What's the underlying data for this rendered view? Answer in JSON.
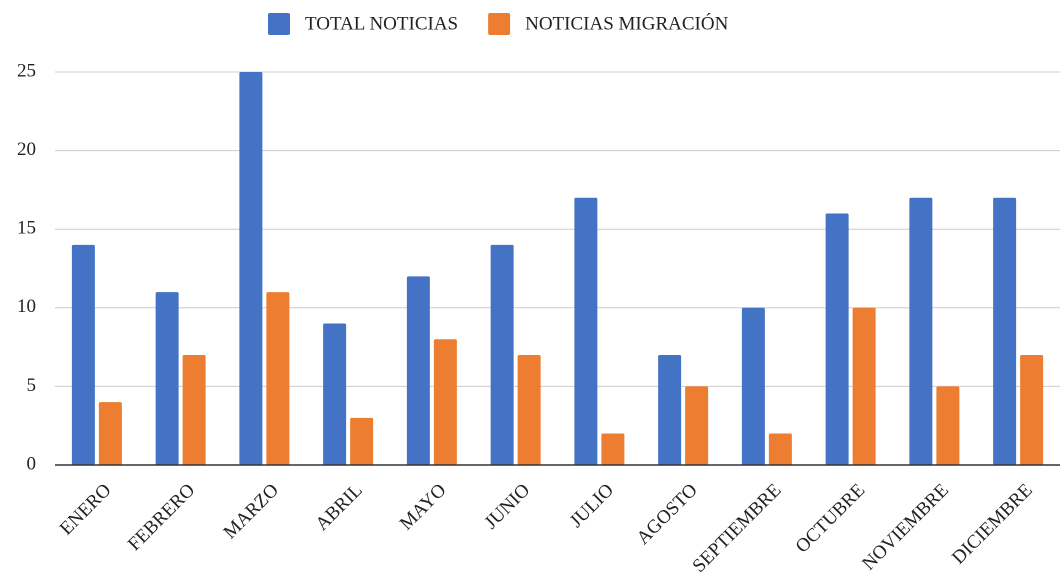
{
  "chart_data": {
    "type": "bar",
    "categories": [
      "ENERO",
      "FEBRERO",
      "MARZO",
      "ABRIL",
      "MAYO",
      "JUNIO",
      "JULIO",
      "AGOSTO",
      "SEPTIEMBRE",
      "OCTUBRE",
      "NOVIEMBRE",
      "DICIEMBRE"
    ],
    "series": [
      {
        "name": "TOTAL NOTICIAS",
        "color": "#4472c4",
        "values": [
          14,
          11,
          25,
          9,
          12,
          14,
          17,
          7,
          10,
          16,
          17,
          17
        ]
      },
      {
        "name": "NOTICIAS MIGRACIÓN",
        "color": "#ed7d31",
        "values": [
          4,
          7,
          11,
          3,
          8,
          7,
          2,
          5,
          2,
          10,
          5,
          7
        ]
      }
    ],
    "ylim": [
      0,
      25
    ],
    "yticks": [
      0,
      5,
      10,
      15,
      20,
      25
    ],
    "grid": true,
    "legend": "top"
  }
}
